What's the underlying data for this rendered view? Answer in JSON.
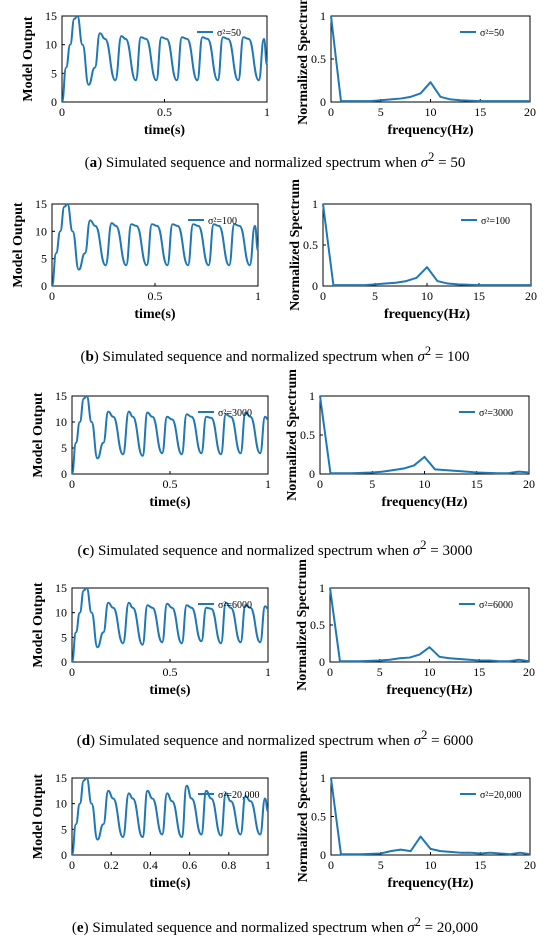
{
  "colors": {
    "line": "#1f77b4",
    "axis": "#000000"
  },
  "panels": [
    {
      "id": "a",
      "caption": {
        "letter": "a",
        "text": " Simulated sequence and normalized spectrum when ",
        "sigma": "σ",
        "exp": "2",
        "value": " = 50"
      },
      "time_chart": {
        "legend": "σ²=50",
        "ylabel": "Model Output",
        "xlabel": "time(s)",
        "xticks": [
          "0",
          "0.5",
          "1"
        ],
        "yticks": [
          "0",
          "5",
          "10",
          "15"
        ]
      },
      "spec_chart": {
        "legend": "σ²=50",
        "ylabel": "Normalized Spectrum",
        "xlabel": "frequency(Hz)",
        "xticks": [
          "0",
          "5",
          "10",
          "15",
          "20"
        ],
        "yticks": [
          "0",
          "0.5",
          "1"
        ]
      }
    },
    {
      "id": "b",
      "caption": {
        "letter": "b",
        "text": " Simulated sequence and normalized spectrum when ",
        "sigma": "σ",
        "exp": "2",
        "value": " = 100"
      },
      "time_chart": {
        "legend": "σ²=100",
        "ylabel": "Model Output",
        "xlabel": "time(s)",
        "xticks": [
          "0",
          "0.5",
          "1"
        ],
        "yticks": [
          "0",
          "5",
          "10",
          "15"
        ]
      },
      "spec_chart": {
        "legend": "σ²=100",
        "ylabel": "Normalized Spectrum",
        "xlabel": "frequency(Hz)",
        "xticks": [
          "0",
          "5",
          "10",
          "15",
          "20"
        ],
        "yticks": [
          "0",
          "0.5",
          "1"
        ]
      }
    },
    {
      "id": "c",
      "caption": {
        "letter": "c",
        "text": " Simulated sequence and normalized spectrum when ",
        "sigma": "σ",
        "exp": "2",
        "value": " = 3000"
      },
      "time_chart": {
        "legend": "σ²=3000",
        "ylabel": "Model Output",
        "xlabel": "time(s)",
        "xticks": [
          "0",
          "0.5",
          "1"
        ],
        "yticks": [
          "0",
          "5",
          "10",
          "15"
        ]
      },
      "spec_chart": {
        "legend": "σ²=3000",
        "ylabel": "Normalized Spectrum",
        "xlabel": "frequency(Hz)",
        "xticks": [
          "0",
          "5",
          "10",
          "15",
          "20"
        ],
        "yticks": [
          "0",
          "0.5",
          "1"
        ]
      }
    },
    {
      "id": "d",
      "caption": {
        "letter": "d",
        "text": " Simulated sequence and normalized spectrum when ",
        "sigma": "σ",
        "exp": "2",
        "value": " = 6000"
      },
      "time_chart": {
        "legend": "σ²=6000",
        "ylabel": "Model Output",
        "xlabel": "time(s)",
        "xticks": [
          "0",
          "0.5",
          "1"
        ],
        "yticks": [
          "0",
          "5",
          "10",
          "15"
        ]
      },
      "spec_chart": {
        "legend": "σ²=6000",
        "ylabel": "Normalized Spectrum",
        "xlabel": "frequency(Hz)",
        "xticks": [
          "0",
          "5",
          "10",
          "15",
          "20"
        ],
        "yticks": [
          "0",
          "0.5",
          "1"
        ]
      }
    },
    {
      "id": "e",
      "caption": {
        "letter": "e",
        "text": " Simulated sequence and normalized spectrum when ",
        "sigma": "σ",
        "exp": "2",
        "value": " = 20,000"
      },
      "time_chart": {
        "legend": "σ²=20,000",
        "ylabel": "Model Output",
        "xlabel": "time(s)",
        "xticks": [
          "0",
          "0.2",
          "0.4",
          "0.6",
          "0.8",
          "1"
        ],
        "yticks": [
          "0",
          "5",
          "10",
          "15"
        ]
      },
      "spec_chart": {
        "legend": "σ²=20,000",
        "ylabel": "Normalized Spectrum",
        "xlabel": "frequency(Hz)",
        "xticks": [
          "0",
          "5",
          "10",
          "15",
          "20"
        ],
        "yticks": [
          "0",
          "0.5",
          "1"
        ]
      }
    }
  ],
  "chart_data": [
    {
      "panel": "a",
      "type": "line",
      "xlabel": "time(s)",
      "ylabel": "Model Output",
      "xlim": [
        0,
        1
      ],
      "ylim": [
        0,
        15
      ],
      "grid": false,
      "legend_position": "top-right",
      "series": [
        {
          "name": "σ²=50",
          "x": [
            0,
            0.02,
            0.04,
            0.06,
            0.075,
            0.1,
            0.13,
            0.16,
            0.185,
            0.21,
            0.26,
            0.29,
            0.31,
            0.36,
            0.385,
            0.41,
            0.46,
            0.485,
            0.51,
            0.56,
            0.585,
            0.61,
            0.66,
            0.685,
            0.71,
            0.76,
            0.785,
            0.81,
            0.86,
            0.885,
            0.91,
            0.96,
            0.985,
            1
          ],
          "y": [
            0,
            6,
            10,
            14.5,
            15,
            10,
            3,
            6,
            12,
            11,
            3.8,
            11.5,
            11,
            3.8,
            11.3,
            11,
            3.8,
            11.3,
            11,
            3.8,
            11.3,
            11,
            3.8,
            11.3,
            11,
            3.8,
            11.3,
            11,
            3.8,
            11.3,
            11,
            3.8,
            11,
            6.5
          ]
        }
      ]
    },
    {
      "panel": "a",
      "type": "line",
      "xlabel": "frequency(Hz)",
      "ylabel": "Normalized Spectrum",
      "xlim": [
        0,
        20
      ],
      "ylim": [
        0,
        1
      ],
      "grid": false,
      "legend_position": "top-right",
      "series": [
        {
          "name": "σ²=50",
          "x": [
            0,
            1,
            2,
            3,
            4,
            5,
            6,
            7,
            8,
            9,
            10,
            11,
            12,
            13,
            14,
            15,
            16,
            17,
            18,
            19,
            20
          ],
          "y": [
            1,
            0.01,
            0.01,
            0.01,
            0.01,
            0.02,
            0.03,
            0.04,
            0.06,
            0.1,
            0.23,
            0.06,
            0.03,
            0.02,
            0.015,
            0.01,
            0.01,
            0.01,
            0.01,
            0.01,
            0.01
          ]
        }
      ]
    },
    {
      "panel": "b",
      "type": "line",
      "xlabel": "time(s)",
      "ylabel": "Model Output",
      "xlim": [
        0,
        1
      ],
      "ylim": [
        0,
        15
      ],
      "grid": false,
      "legend_position": "top-right",
      "series": [
        {
          "name": "σ²=100",
          "x": [
            0,
            0.02,
            0.04,
            0.06,
            0.075,
            0.1,
            0.13,
            0.16,
            0.185,
            0.21,
            0.26,
            0.29,
            0.31,
            0.36,
            0.385,
            0.41,
            0.46,
            0.485,
            0.51,
            0.56,
            0.585,
            0.61,
            0.66,
            0.685,
            0.71,
            0.76,
            0.785,
            0.81,
            0.86,
            0.885,
            0.91,
            0.96,
            0.985,
            1
          ],
          "y": [
            0,
            6,
            10,
            14.5,
            15,
            10,
            3,
            6,
            12,
            11,
            3.8,
            11.5,
            11,
            3.8,
            11.3,
            11,
            3.8,
            11.3,
            11,
            3.8,
            11.3,
            11,
            3.8,
            11.3,
            11,
            3.8,
            11.3,
            11,
            3.8,
            11.3,
            11,
            3.8,
            11,
            6.5
          ]
        }
      ]
    },
    {
      "panel": "b",
      "type": "line",
      "xlabel": "frequency(Hz)",
      "ylabel": "Normalized Spectrum",
      "xlim": [
        0,
        20
      ],
      "ylim": [
        0,
        1
      ],
      "grid": false,
      "legend_position": "top-right",
      "series": [
        {
          "name": "σ²=100",
          "x": [
            0,
            1,
            2,
            3,
            4,
            5,
            6,
            7,
            8,
            9,
            10,
            11,
            12,
            13,
            14,
            15,
            16,
            17,
            18,
            19,
            20
          ],
          "y": [
            1,
            0.01,
            0.01,
            0.01,
            0.01,
            0.02,
            0.03,
            0.04,
            0.06,
            0.1,
            0.23,
            0.06,
            0.03,
            0.02,
            0.015,
            0.01,
            0.01,
            0.01,
            0.01,
            0.01,
            0.01
          ]
        }
      ]
    },
    {
      "panel": "c",
      "type": "line",
      "xlabel": "time(s)",
      "ylabel": "Model Output",
      "xlim": [
        0,
        1
      ],
      "ylim": [
        0,
        15
      ],
      "grid": false,
      "legend_position": "top-right",
      "series": [
        {
          "name": "σ²=3000",
          "x": [
            0,
            0.02,
            0.04,
            0.06,
            0.075,
            0.1,
            0.13,
            0.16,
            0.185,
            0.21,
            0.26,
            0.29,
            0.31,
            0.36,
            0.385,
            0.41,
            0.46,
            0.485,
            0.51,
            0.56,
            0.585,
            0.61,
            0.66,
            0.685,
            0.71,
            0.76,
            0.785,
            0.81,
            0.86,
            0.885,
            0.91,
            0.96,
            0.985,
            1
          ],
          "y": [
            0,
            6,
            10,
            14.5,
            15,
            10,
            3,
            6,
            12,
            11,
            3.8,
            12,
            11,
            3.5,
            11.8,
            11,
            4,
            11,
            10.5,
            3.8,
            11.5,
            11,
            4,
            11,
            10.8,
            3.8,
            11.5,
            11,
            4,
            11.8,
            11,
            4,
            11,
            10.5
          ]
        }
      ]
    },
    {
      "panel": "c",
      "type": "line",
      "xlabel": "frequency(Hz)",
      "ylabel": "Normalized Spectrum",
      "xlim": [
        0,
        20
      ],
      "ylim": [
        0,
        1
      ],
      "grid": false,
      "legend_position": "top-right",
      "series": [
        {
          "name": "σ²=3000",
          "x": [
            0,
            1,
            2,
            3,
            4,
            5,
            6,
            7,
            8,
            9,
            10,
            11,
            12,
            13,
            14,
            15,
            16,
            17,
            18,
            19,
            20
          ],
          "y": [
            1,
            0.01,
            0.01,
            0.01,
            0.015,
            0.02,
            0.03,
            0.05,
            0.07,
            0.11,
            0.22,
            0.06,
            0.05,
            0.04,
            0.03,
            0.02,
            0.015,
            0.01,
            0.01,
            0.03,
            0.02
          ]
        }
      ]
    },
    {
      "panel": "d",
      "type": "line",
      "xlabel": "time(s)",
      "ylabel": "Model Output",
      "xlim": [
        0,
        1
      ],
      "ylim": [
        0,
        15
      ],
      "grid": false,
      "legend_position": "top-right",
      "series": [
        {
          "name": "σ²=6000",
          "x": [
            0,
            0.02,
            0.04,
            0.06,
            0.075,
            0.1,
            0.13,
            0.16,
            0.185,
            0.21,
            0.26,
            0.29,
            0.31,
            0.36,
            0.385,
            0.41,
            0.46,
            0.485,
            0.51,
            0.56,
            0.585,
            0.61,
            0.66,
            0.685,
            0.71,
            0.76,
            0.785,
            0.81,
            0.86,
            0.885,
            0.91,
            0.96,
            0.985,
            1
          ],
          "y": [
            0,
            6,
            10,
            14.5,
            15,
            10,
            3,
            6,
            12,
            11,
            3.8,
            12,
            11,
            3.5,
            11.5,
            11,
            4,
            11.8,
            11,
            3.8,
            11.5,
            11,
            4.2,
            11,
            10.8,
            3.8,
            12,
            11,
            4,
            11.5,
            11,
            4,
            11.3,
            10.8
          ]
        }
      ]
    },
    {
      "panel": "d",
      "type": "line",
      "xlabel": "frequency(Hz)",
      "ylabel": "Normalized Spectrum",
      "xlim": [
        0,
        20
      ],
      "ylim": [
        0,
        1
      ],
      "grid": false,
      "legend_position": "top-right",
      "series": [
        {
          "name": "σ²=6000",
          "x": [
            0,
            1,
            2,
            3,
            4,
            5,
            6,
            7,
            8,
            9,
            10,
            11,
            12,
            13,
            14,
            15,
            16,
            17,
            18,
            19,
            20
          ],
          "y": [
            1,
            0.01,
            0.01,
            0.01,
            0.015,
            0.02,
            0.03,
            0.05,
            0.06,
            0.1,
            0.2,
            0.07,
            0.05,
            0.04,
            0.03,
            0.02,
            0.02,
            0.01,
            0.01,
            0.03,
            0.01
          ]
        }
      ]
    },
    {
      "panel": "e",
      "type": "line",
      "xlabel": "time(s)",
      "ylabel": "Model Output",
      "xlim": [
        0,
        1
      ],
      "ylim": [
        0,
        15
      ],
      "grid": false,
      "legend_position": "top-right",
      "series": [
        {
          "name": "σ²=20,000",
          "x": [
            0,
            0.02,
            0.04,
            0.06,
            0.075,
            0.1,
            0.13,
            0.16,
            0.185,
            0.21,
            0.26,
            0.29,
            0.31,
            0.36,
            0.385,
            0.41,
            0.46,
            0.485,
            0.51,
            0.56,
            0.585,
            0.61,
            0.66,
            0.685,
            0.71,
            0.76,
            0.785,
            0.81,
            0.86,
            0.885,
            0.91,
            0.96,
            0.985,
            1
          ],
          "y": [
            0,
            6,
            10,
            14.5,
            15,
            10,
            3,
            6,
            12.5,
            11,
            3.5,
            12,
            11,
            3.5,
            12.5,
            11,
            4,
            12,
            10.5,
            3.5,
            13.5,
            11,
            4,
            12.5,
            11,
            3.8,
            12,
            10.5,
            4,
            11.5,
            10.5,
            4,
            11,
            8.5
          ]
        }
      ]
    },
    {
      "panel": "e",
      "type": "line",
      "xlabel": "frequency(Hz)",
      "ylabel": "Normalized Spectrum",
      "xlim": [
        0,
        20
      ],
      "ylim": [
        0,
        1
      ],
      "grid": false,
      "legend_position": "top-right",
      "series": [
        {
          "name": "σ²=20,000",
          "x": [
            0,
            1,
            2,
            3,
            4,
            5,
            6,
            7,
            8,
            9,
            10,
            11,
            12,
            13,
            14,
            15,
            16,
            17,
            18,
            19,
            20
          ],
          "y": [
            1,
            0.01,
            0.01,
            0.01,
            0.015,
            0.02,
            0.05,
            0.07,
            0.05,
            0.24,
            0.08,
            0.05,
            0.04,
            0.03,
            0.03,
            0.02,
            0.03,
            0.02,
            0.01,
            0.03,
            0.01
          ]
        }
      ]
    }
  ]
}
